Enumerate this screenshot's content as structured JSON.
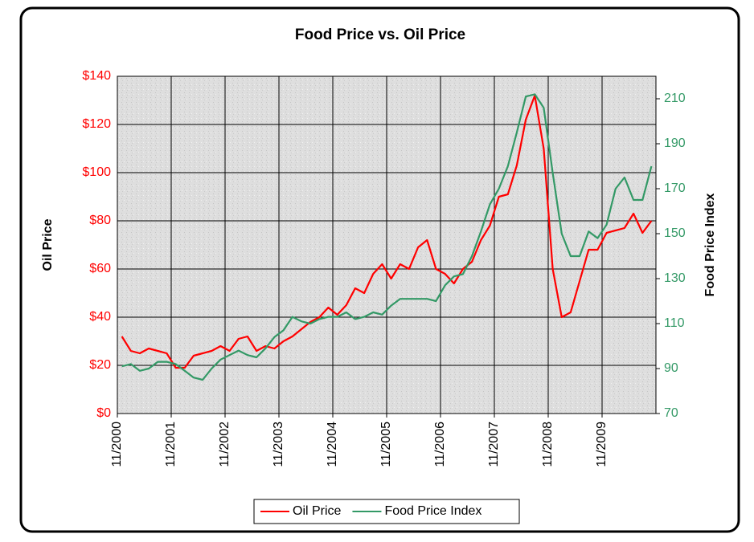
{
  "chart_data": {
    "type": "line",
    "title": "Food Price vs. Oil Price",
    "y_label": "Oil Price",
    "y2_label": "Food Price Index",
    "categories": [
      "11/2000",
      null,
      null,
      null,
      null,
      null,
      "11/2001",
      null,
      null,
      null,
      null,
      null,
      "11/2002",
      null,
      null,
      null,
      null,
      null,
      "11/2003",
      null,
      null,
      null,
      null,
      null,
      "11/2004",
      null,
      null,
      null,
      null,
      null,
      "11/2005",
      null,
      null,
      null,
      null,
      null,
      "11/2006",
      null,
      null,
      null,
      null,
      null,
      "11/2007",
      null,
      null,
      null,
      null,
      null,
      "11/2008",
      null,
      null,
      null,
      null,
      null,
      "11/2009",
      null,
      null,
      null,
      null,
      null
    ],
    "series": [
      {
        "name": "Oil Price",
        "color": "#ff0000",
        "axis": "y",
        "values": [
          32,
          26,
          25,
          27,
          26,
          25,
          19,
          19,
          24,
          25,
          26,
          28,
          26,
          31,
          32,
          26,
          28,
          27,
          30,
          32,
          35,
          38,
          40,
          44,
          41,
          45,
          52,
          50,
          58,
          62,
          56,
          62,
          60,
          69,
          72,
          60,
          58,
          54,
          60,
          63,
          72,
          78,
          90,
          91,
          103,
          122,
          132,
          110,
          60,
          40,
          42,
          55,
          68,
          68,
          75,
          76,
          77,
          83,
          75,
          80
        ]
      },
      {
        "name": "Food Price Index",
        "color": "#339966",
        "axis": "y2",
        "values": [
          91,
          92,
          89,
          90,
          93,
          93,
          92,
          89,
          86,
          85,
          90,
          94,
          96,
          98,
          96,
          95,
          99,
          104,
          107,
          113,
          111,
          110,
          112,
          113,
          113,
          115,
          112,
          113,
          115,
          114,
          118,
          121,
          121,
          121,
          121,
          120,
          127,
          131,
          132,
          140,
          151,
          163,
          170,
          180,
          195,
          211,
          212,
          206,
          177,
          150,
          140,
          140,
          151,
          148,
          154,
          170,
          175,
          165,
          165,
          180
        ]
      }
    ],
    "ylim": [
      0,
      140
    ],
    "yticks": [
      {
        "value": 0,
        "label": "$0"
      },
      {
        "value": 20,
        "label": "$20"
      },
      {
        "value": 40,
        "label": "$40"
      },
      {
        "value": 60,
        "label": "$60"
      },
      {
        "value": 80,
        "label": "$80"
      },
      {
        "value": 100,
        "label": "$100"
      },
      {
        "value": 120,
        "label": "$120"
      },
      {
        "value": 140,
        "label": "$140"
      }
    ],
    "y2lim": [
      70,
      220
    ],
    "y2ticks": [
      70,
      90,
      110,
      130,
      150,
      170,
      190,
      210
    ],
    "grid": true,
    "legend": "bottom"
  }
}
